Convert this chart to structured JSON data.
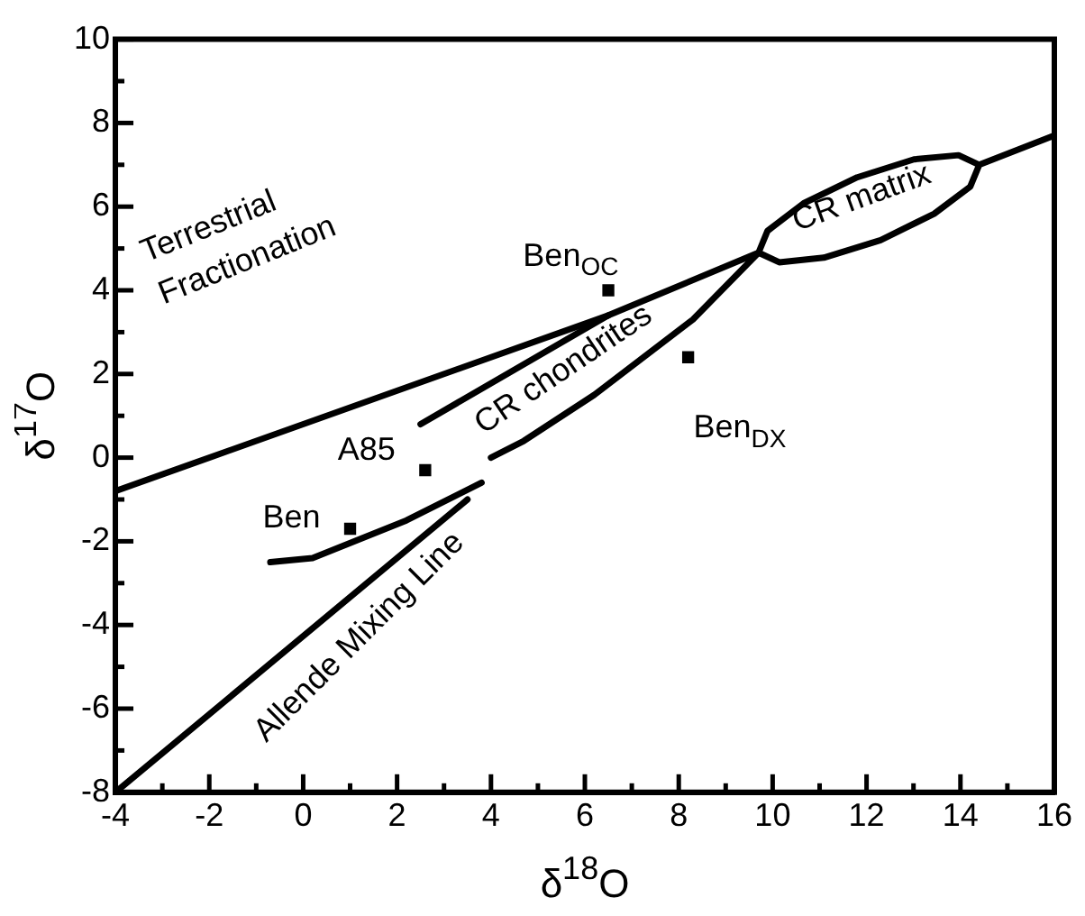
{
  "chart_data": {
    "type": "scatter",
    "xlabel": "δ$^{18}$O",
    "ylabel": "δ$^{17}$O",
    "xlim": [
      -4,
      16
    ],
    "ylim": [
      -8,
      10
    ],
    "xticks": [
      -4,
      {
        "value": -3,
        "label": null
      },
      -2,
      {
        "value": -1,
        "label": null
      },
      0,
      {
        "value": 1,
        "label": null
      },
      2,
      {
        "value": 3,
        "label": null
      },
      4,
      {
        "value": 5,
        "label": null
      },
      6,
      {
        "value": 7,
        "label": null
      },
      8,
      {
        "value": 9,
        "label": null
      },
      10,
      {
        "value": 11,
        "label": null
      },
      12,
      {
        "value": 13,
        "label": null
      },
      14,
      {
        "value": 15,
        "label": null
      },
      16
    ],
    "yticks": [
      -8,
      {
        "value": -7,
        "label": null
      },
      -6,
      {
        "value": -5,
        "label": null
      },
      -4,
      {
        "value": -3,
        "label": null
      },
      -2,
      {
        "value": -1,
        "label": null
      },
      0,
      {
        "value": 1,
        "label": null
      },
      2,
      {
        "value": 3,
        "label": null
      },
      4,
      {
        "value": 5,
        "label": null
      },
      6,
      {
        "value": 7,
        "label": null
      },
      8,
      {
        "value": 9,
        "label": null
      },
      10
    ],
    "series": [
      {
        "type": "line",
        "color": "#000000",
        "x": [
          -4,
          6.5
        ],
        "values": [
          -0.8,
          3.4
        ]
      },
      {
        "type": "line",
        "color": "#000000",
        "x": [
          -4,
          3.5
        ],
        "values": [
          -8,
          -1.0
        ]
      },
      {
        "type": "line",
        "color": "#000000",
        "x": [
          2.5,
          6.5,
          9.7,
          9.89,
          10.66,
          11.8,
          13.01,
          13.96,
          14.4
        ],
        "values": [
          0.8,
          3.4,
          4.9,
          5.42,
          6.08,
          6.7,
          7.13,
          7.23,
          7.0
        ]
      },
      {
        "type": "line",
        "color": "#000000",
        "x": [
          4,
          4.7,
          6.2,
          8.3,
          9.7,
          10.14,
          11.09,
          12.3,
          13.44,
          14.21,
          14.4,
          16
        ],
        "values": [
          0,
          0.4,
          1.5,
          3.3,
          4.9,
          4.67,
          4.78,
          5.2,
          5.83,
          6.48,
          7.0,
          7.7
        ]
      },
      {
        "type": "line",
        "color": "#000000",
        "x": [
          -0.7,
          0.2,
          2.2,
          3.8
        ],
        "values": [
          -2.5,
          -2.4,
          -1.5,
          -0.6
        ]
      },
      {
        "type": "scatter",
        "color": "#000000",
        "marker": "square",
        "x": [
          6.5,
          8.2,
          2.6,
          1.0
        ],
        "values": [
          4.0,
          2.4,
          -0.3,
          -1.7
        ]
      }
    ],
    "annotations": [
      "Terrestrial Fractionation",
      "Ben$_{OC}$",
      "Ben$_{DX}$",
      "A85",
      "Ben",
      "CR chondrites",
      "CR matrix",
      "Allende Mixing Line"
    ]
  }
}
